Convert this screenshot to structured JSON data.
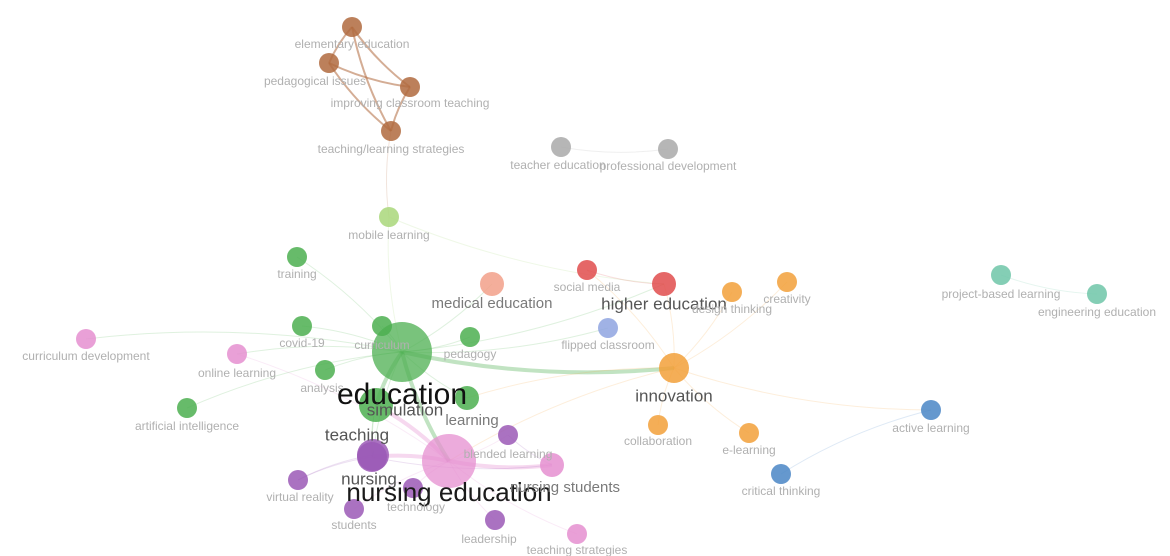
{
  "nodes": [
    {
      "id": "elementary-education",
      "label": "elementary education",
      "color": "#b06a3e",
      "size": "s"
    },
    {
      "id": "pedagogical-issues",
      "label": "pedagogical issues",
      "color": "#b06a3e",
      "size": "s"
    },
    {
      "id": "improving-classroom-teaching",
      "label": "improving classroom teaching",
      "color": "#b06a3e",
      "size": "s"
    },
    {
      "id": "teaching-learning-strategies",
      "label": "teaching/learning strategies",
      "color": "#b06a3e",
      "size": "s"
    },
    {
      "id": "teacher-education",
      "label": "teacher education",
      "color": "#a9a9a9",
      "size": "s"
    },
    {
      "id": "professional-development",
      "label": "professional development",
      "color": "#a9a9a9",
      "size": "s"
    },
    {
      "id": "mobile-learning",
      "label": "mobile learning",
      "color": "#a9d77a",
      "size": "s"
    },
    {
      "id": "training",
      "label": "training",
      "color": "#4caf50",
      "size": "s"
    },
    {
      "id": "medical-education",
      "label": "medical education",
      "color": "#f2a08a",
      "size": "m"
    },
    {
      "id": "social-media",
      "label": "social media",
      "color": "#e04c4c",
      "size": "s"
    },
    {
      "id": "higher-education",
      "label": "higher education",
      "color": "#e04c4c",
      "size": "m"
    },
    {
      "id": "design-thinking",
      "label": "design thinking",
      "color": "#f2a03a",
      "size": "s"
    },
    {
      "id": "creativity",
      "label": "creativity",
      "color": "#f2a03a",
      "size": "s"
    },
    {
      "id": "project-based-learning",
      "label": "project-based learning",
      "color": "#6ec6a8",
      "size": "s"
    },
    {
      "id": "engineering-education",
      "label": "engineering education",
      "color": "#6ec6a8",
      "size": "s"
    },
    {
      "id": "curriculum-development",
      "label": "curriculum development",
      "color": "#e58fd0",
      "size": "s"
    },
    {
      "id": "covid-19",
      "label": "covid-19",
      "color": "#4caf50",
      "size": "s"
    },
    {
      "id": "curriculum",
      "label": "curriculum",
      "color": "#4caf50",
      "size": "s"
    },
    {
      "id": "pedagogy",
      "label": "pedagogy",
      "color": "#4caf50",
      "size": "s"
    },
    {
      "id": "flipped-classroom",
      "label": "flipped classroom",
      "color": "#8fa5e0",
      "size": "s"
    },
    {
      "id": "online-learning",
      "label": "online learning",
      "color": "#e58fd0",
      "size": "s"
    },
    {
      "id": "analysis",
      "label": "analysis",
      "color": "#4caf50",
      "size": "s"
    },
    {
      "id": "innovation",
      "label": "innovation",
      "color": "#f2a03a",
      "size": "l"
    },
    {
      "id": "education",
      "label": "education",
      "color": "#4caf50",
      "size": "xxl"
    },
    {
      "id": "simulation",
      "label": "simulation",
      "color": "#4caf50",
      "size": "l"
    },
    {
      "id": "learning",
      "label": "learning",
      "color": "#4caf50",
      "size": "m"
    },
    {
      "id": "artificial-intelligence",
      "label": "artificial intelligence",
      "color": "#4caf50",
      "size": "s"
    },
    {
      "id": "teaching",
      "label": "teaching",
      "color": "#9b59b6",
      "size": "l"
    },
    {
      "id": "blended-learning",
      "label": "blended learning",
      "color": "#9b59b6",
      "size": "s"
    },
    {
      "id": "collaboration",
      "label": "collaboration",
      "color": "#f2a03a",
      "size": "s"
    },
    {
      "id": "e-learning",
      "label": "e-learning",
      "color": "#f2a03a",
      "size": "s"
    },
    {
      "id": "active-learning",
      "label": "active learning",
      "color": "#4a86c5",
      "size": "s"
    },
    {
      "id": "nursing",
      "label": "nursing",
      "color": "#9b59b6",
      "size": "l"
    },
    {
      "id": "nursing-education",
      "label": "nursing education",
      "color": "#e58fd0",
      "size": "xxl"
    },
    {
      "id": "nursing-students",
      "label": "nursing students",
      "color": "#e58fd0",
      "size": "m"
    },
    {
      "id": "critical-thinking",
      "label": "critical thinking",
      "color": "#4a86c5",
      "size": "s"
    },
    {
      "id": "virtual-reality",
      "label": "virtual reality",
      "color": "#9b59b6",
      "size": "s"
    },
    {
      "id": "technology",
      "label": "technology",
      "color": "#9b59b6",
      "size": "s"
    },
    {
      "id": "students",
      "label": "students",
      "color": "#9b59b6",
      "size": "s"
    },
    {
      "id": "leadership",
      "label": "leadership",
      "color": "#9b59b6",
      "size": "s"
    },
    {
      "id": "teaching-strategies",
      "label": "teaching strategies",
      "color": "#e58fd0",
      "size": "s"
    }
  ],
  "edges": [
    [
      "elementary-education",
      "pedagogical-issues"
    ],
    [
      "elementary-education",
      "improving-classroom-teaching"
    ],
    [
      "elementary-education",
      "teaching-learning-strategies"
    ],
    [
      "pedagogical-issues",
      "improving-classroom-teaching"
    ],
    [
      "pedagogical-issues",
      "teaching-learning-strategies"
    ],
    [
      "improving-classroom-teaching",
      "teaching-learning-strategies"
    ],
    [
      "teacher-education",
      "professional-development"
    ],
    [
      "teaching-learning-strategies",
      "mobile-learning"
    ],
    [
      "mobile-learning",
      "education"
    ],
    [
      "mobile-learning",
      "higher-education"
    ],
    [
      "education",
      "innovation"
    ],
    [
      "education",
      "simulation"
    ],
    [
      "education",
      "nursing-education"
    ],
    [
      "education",
      "medical-education"
    ],
    [
      "education",
      "higher-education"
    ],
    [
      "education",
      "curriculum"
    ],
    [
      "education",
      "training"
    ],
    [
      "education",
      "covid-19"
    ],
    [
      "education",
      "pedagogy"
    ],
    [
      "education",
      "learning"
    ],
    [
      "education",
      "teaching"
    ],
    [
      "education",
      "curriculum-development"
    ],
    [
      "education",
      "online-learning"
    ],
    [
      "education",
      "analysis"
    ],
    [
      "education",
      "artificial-intelligence"
    ],
    [
      "education",
      "flipped-classroom"
    ],
    [
      "innovation",
      "design-thinking"
    ],
    [
      "innovation",
      "creativity"
    ],
    [
      "innovation",
      "collaboration"
    ],
    [
      "innovation",
      "e-learning"
    ],
    [
      "innovation",
      "active-learning"
    ],
    [
      "innovation",
      "higher-education"
    ],
    [
      "innovation",
      "learning"
    ],
    [
      "innovation",
      "nursing-education"
    ],
    [
      "innovation",
      "social-media"
    ],
    [
      "social-media",
      "higher-education"
    ],
    [
      "active-learning",
      "critical-thinking"
    ],
    [
      "nursing-education",
      "nursing"
    ],
    [
      "nursing-education",
      "nursing-students"
    ],
    [
      "nursing-education",
      "simulation"
    ],
    [
      "nursing-education",
      "blended-learning"
    ],
    [
      "nursing-education",
      "students"
    ],
    [
      "nursing-education",
      "technology"
    ],
    [
      "nursing-education",
      "leadership"
    ],
    [
      "nursing-education",
      "teaching-strategies"
    ],
    [
      "nursing-education",
      "online-learning"
    ],
    [
      "nursing",
      "virtual-reality"
    ],
    [
      "nursing",
      "teaching"
    ],
    [
      "nursing",
      "nursing-students"
    ],
    [
      "simulation",
      "teaching"
    ],
    [
      "simulation",
      "nursing"
    ],
    [
      "teaching",
      "virtual-reality"
    ],
    [
      "blended-learning",
      "nursing-students"
    ],
    [
      "project-based-learning",
      "engineering-education"
    ]
  ]
}
